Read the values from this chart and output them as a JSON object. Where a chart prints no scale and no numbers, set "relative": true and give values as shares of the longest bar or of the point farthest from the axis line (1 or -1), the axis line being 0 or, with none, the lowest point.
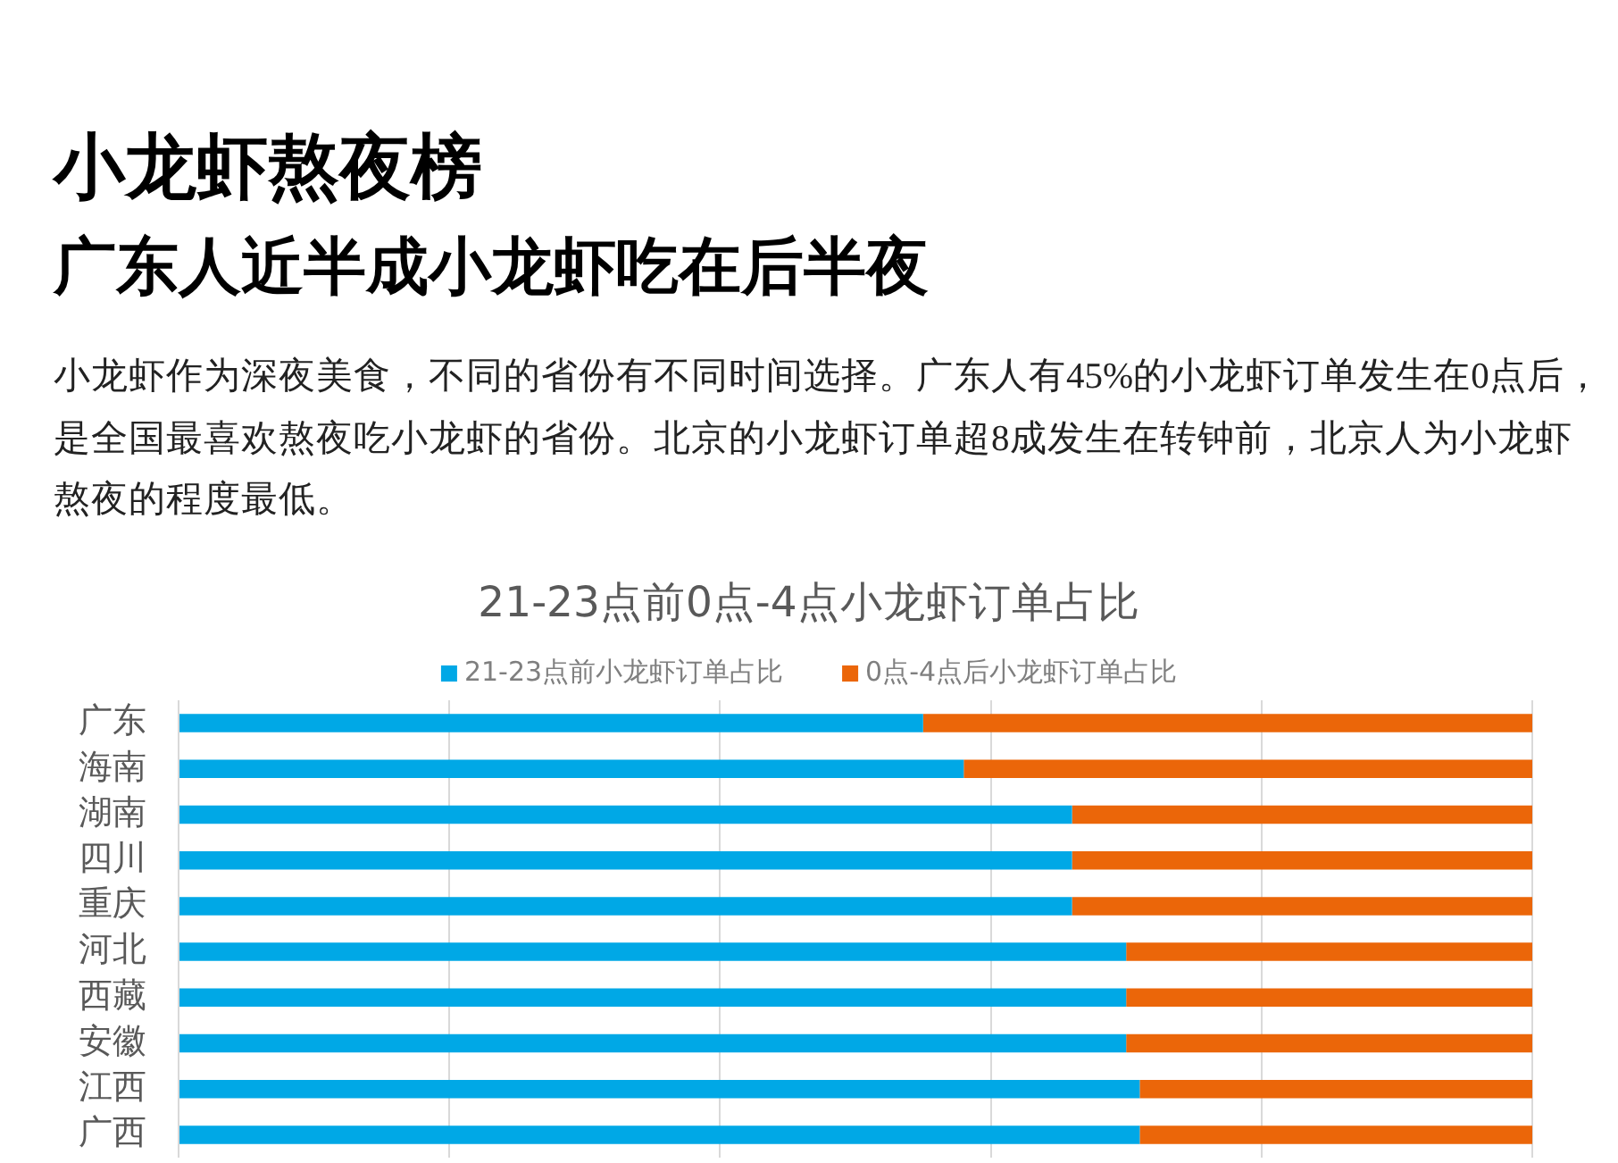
{
  "chart_data": {
    "type": "bar",
    "orientation": "horizontal",
    "stacked": true,
    "relative": true,
    "title": "小龙虾熬夜榜",
    "subtitle": "广东人近半成小龙虾吃在后半夜",
    "annotations": [
      "小龙虾作为深夜美食，不同的省份有不同时间选择。广东人有45%的小龙虾订单发生在0点后，是全国最喜欢熬夜吃小龙虾的省份。北京的小龙虾订单超8成发生在转钟前，北京人为小龙虾熬夜的程度最低。",
      "21-23点前0点-4点小龙虾订单占比"
    ],
    "categories": [
      "广东",
      "海南",
      "湖南",
      "四川",
      "重庆",
      "河北",
      "西藏",
      "安徽",
      "江西",
      "广西"
    ],
    "series": [
      {
        "name": "21-23点前小龙虾订单占比",
        "color": "#00a8e6",
        "values": [
          0.55,
          0.58,
          0.66,
          0.66,
          0.66,
          0.7,
          0.7,
          0.7,
          0.71,
          0.71
        ]
      },
      {
        "name": "0点-4点后小龙虾订单占比",
        "color": "#eb6609",
        "values": [
          0.45,
          0.42,
          0.34,
          0.34,
          0.34,
          0.3,
          0.3,
          0.3,
          0.29,
          0.29
        ]
      }
    ],
    "grid": "x",
    "legend": "top"
  }
}
